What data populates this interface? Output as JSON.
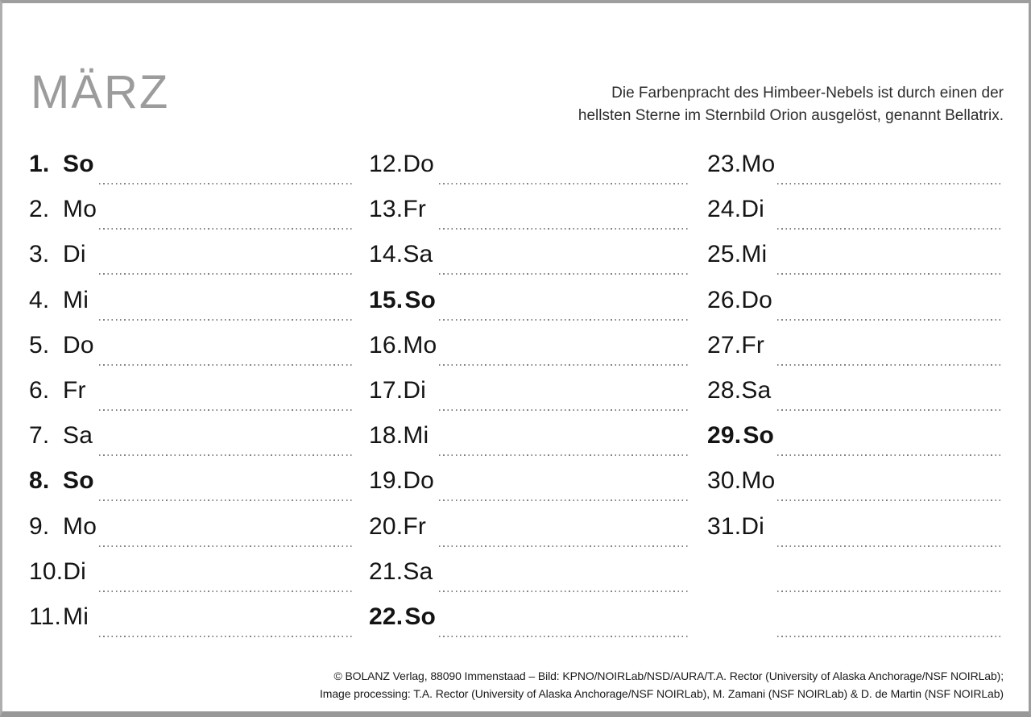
{
  "title": "MÄRZ",
  "caption": {
    "line1": "Die Farbenpracht des Himbeer-Nebels ist durch einen der",
    "line2": "hellsten Sterne im Sternbild Orion ausgelöst, genannt Bellatrix."
  },
  "credits": {
    "line1": "© BOLANZ Verlag, 88090 Immenstaad – Bild: KPNO/NOIRLab/NSD/AURA/T.A. Rector (University of Alaska Anchorage/NSF NOIRLab);",
    "line2": "Image processing: T.A. Rector (University of Alaska Anchorage/NSF NOIRLab), M. Zamani (NSF NOIRLab) & D. de Martin (NSF NOIRLab)"
  },
  "colors": {
    "title_gray": "#9c9c9c",
    "day_text": "#141414",
    "dot_gray": "#828282",
    "page_border": "#9e9e9e"
  },
  "calendar": {
    "columns": [
      {
        "rows": [
          {
            "day": "1.",
            "weekday": "So",
            "bold": true,
            "empty": false
          },
          {
            "day": "2.",
            "weekday": "Mo",
            "bold": false,
            "empty": false
          },
          {
            "day": "3.",
            "weekday": "Di",
            "bold": false,
            "empty": false
          },
          {
            "day": "4.",
            "weekday": "Mi",
            "bold": false,
            "empty": false
          },
          {
            "day": "5.",
            "weekday": "Do",
            "bold": false,
            "empty": false
          },
          {
            "day": "6.",
            "weekday": "Fr",
            "bold": false,
            "empty": false
          },
          {
            "day": "7.",
            "weekday": "Sa",
            "bold": false,
            "empty": false
          },
          {
            "day": "8.",
            "weekday": "So",
            "bold": true,
            "empty": false
          },
          {
            "day": "9.",
            "weekday": "Mo",
            "bold": false,
            "empty": false
          },
          {
            "day": "10.",
            "weekday": "Di",
            "bold": false,
            "empty": false
          },
          {
            "day": "11.",
            "weekday": "Mi",
            "bold": false,
            "empty": false
          }
        ]
      },
      {
        "rows": [
          {
            "day": "12.",
            "weekday": "Do",
            "bold": false,
            "empty": false
          },
          {
            "day": "13.",
            "weekday": "Fr",
            "bold": false,
            "empty": false
          },
          {
            "day": "14.",
            "weekday": "Sa",
            "bold": false,
            "empty": false
          },
          {
            "day": "15.",
            "weekday": "So",
            "bold": true,
            "empty": false
          },
          {
            "day": "16.",
            "weekday": "Mo",
            "bold": false,
            "empty": false
          },
          {
            "day": "17.",
            "weekday": "Di",
            "bold": false,
            "empty": false
          },
          {
            "day": "18.",
            "weekday": "Mi",
            "bold": false,
            "empty": false
          },
          {
            "day": "19.",
            "weekday": "Do",
            "bold": false,
            "empty": false
          },
          {
            "day": "20.",
            "weekday": "Fr",
            "bold": false,
            "empty": false
          },
          {
            "day": "21.",
            "weekday": "Sa",
            "bold": false,
            "empty": false
          },
          {
            "day": "22.",
            "weekday": "So",
            "bold": true,
            "empty": false
          }
        ]
      },
      {
        "rows": [
          {
            "day": "23.",
            "weekday": "Mo",
            "bold": false,
            "empty": false
          },
          {
            "day": "24.",
            "weekday": "Di",
            "bold": false,
            "empty": false
          },
          {
            "day": "25.",
            "weekday": "Mi",
            "bold": false,
            "empty": false
          },
          {
            "day": "26.",
            "weekday": "Do",
            "bold": false,
            "empty": false
          },
          {
            "day": "27.",
            "weekday": "Fr",
            "bold": false,
            "empty": false
          },
          {
            "day": "28.",
            "weekday": "Sa",
            "bold": false,
            "empty": false
          },
          {
            "day": "29.",
            "weekday": "So",
            "bold": true,
            "empty": false
          },
          {
            "day": "30.",
            "weekday": "Mo",
            "bold": false,
            "empty": false
          },
          {
            "day": "31.",
            "weekday": "Di",
            "bold": false,
            "empty": false
          },
          {
            "day": "",
            "weekday": "",
            "bold": false,
            "empty": true
          },
          {
            "day": "",
            "weekday": "",
            "bold": false,
            "empty": true
          }
        ]
      }
    ]
  }
}
